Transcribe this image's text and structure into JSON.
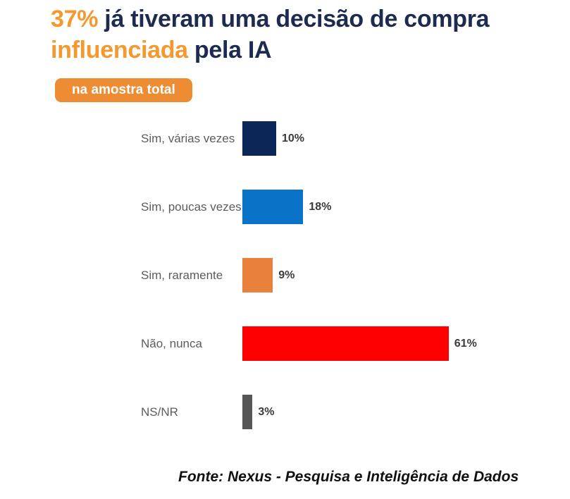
{
  "title": {
    "segments": [
      {
        "text": "37%",
        "highlight": true
      },
      {
        "text": " já tiveram uma decisão de compra ",
        "highlight": false
      },
      {
        "text": "influenciada",
        "highlight": true
      },
      {
        "text": " pela IA",
        "highlight": false
      }
    ],
    "full_text": "37% já tiveram uma decisão de compra influenciada pela IA"
  },
  "badge": {
    "label": "na amostra total"
  },
  "chart_data": {
    "type": "bar",
    "orientation": "horizontal",
    "title": "37% já tiveram uma decisão de compra influenciada pela IA",
    "subtitle": "na amostra total",
    "categories": [
      "Sim, várias vezes",
      "Sim, poucas vezes",
      "Sim, raramente",
      "Não, nunca",
      "NS/NR"
    ],
    "values": [
      10,
      18,
      9,
      61,
      3
    ],
    "value_labels": [
      "10%",
      "18%",
      "9%",
      "61%",
      "3%"
    ],
    "bar_colors": [
      "#0d2658",
      "#0b73c7",
      "#e8813b",
      "#fe0000",
      "#565656"
    ],
    "xlim": [
      0,
      100
    ],
    "grid": false,
    "data_labels": true,
    "legend": false
  },
  "footer": {
    "source": "Fonte: Nexus - Pesquisa e Inteligência de Dados"
  },
  "colors": {
    "title_navy": "#1d2b50",
    "title_highlight_orange": "#f5992f",
    "badge_orange": "#ee8c33",
    "category_label_gray": "#5c5c5c",
    "value_label_dark": "#3b3b3b",
    "background": "#ffffff"
  }
}
